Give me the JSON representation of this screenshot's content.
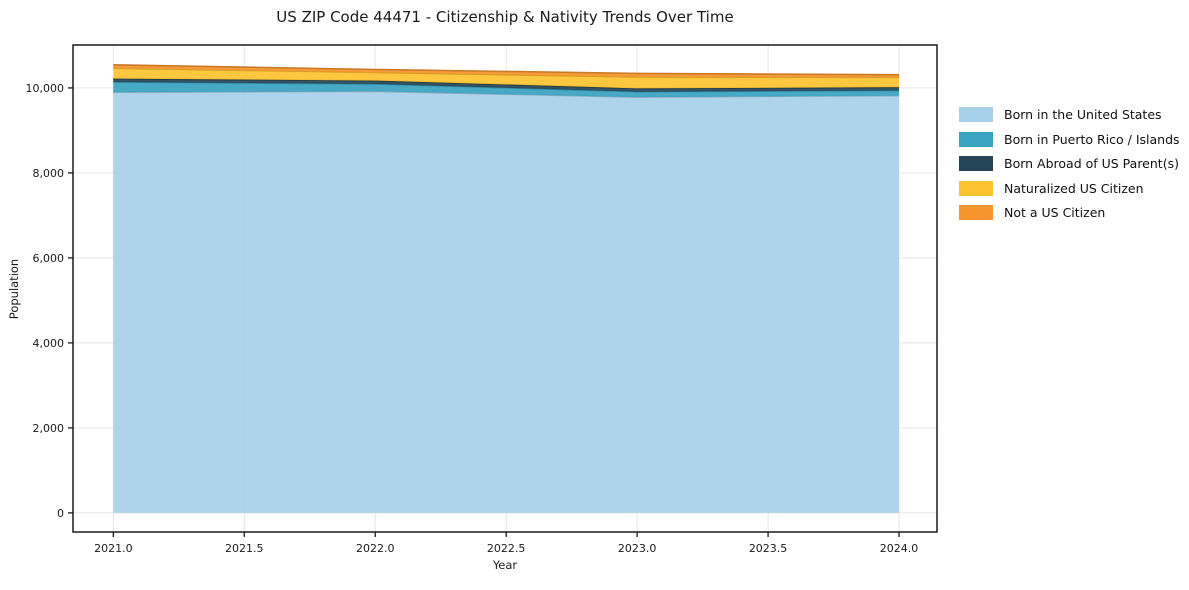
{
  "chart_data": {
    "type": "area",
    "stacked": true,
    "title": "US ZIP Code 44471 - Citizenship & Nativity Trends Over Time",
    "xlabel": "Year",
    "ylabel": "Population",
    "x": [
      2021,
      2022,
      2023,
      2024
    ],
    "series": [
      {
        "name": "Born in the United States",
        "color": "#a7d1e8",
        "values": [
          9900,
          9920,
          9785,
          9820
        ]
      },
      {
        "name": "Born in Puerto Rico / Islands",
        "color": "#3aa3c2",
        "values": [
          240,
          175,
          125,
          120
        ]
      },
      {
        "name": "Born Abroad of US Parent(s)",
        "color": "#254656",
        "values": [
          80,
          78,
          78,
          78
        ]
      },
      {
        "name": "Naturalized US Citizen",
        "color": "#fdc330",
        "values": [
          245,
          190,
          268,
          230
        ]
      },
      {
        "name": "Not a US Citizen",
        "color": "#f6942d",
        "values": [
          80,
          70,
          85,
          62
        ]
      }
    ],
    "xticks": [
      2021.0,
      2021.5,
      2022.0,
      2022.5,
      2023.0,
      2023.5,
      2024.0
    ],
    "xtick_labels": [
      "2021.0",
      "2021.5",
      "2022.0",
      "2022.5",
      "2023.0",
      "2023.5",
      "2024.0"
    ],
    "yticks": [
      0,
      2000,
      4000,
      6000,
      8000,
      10000
    ],
    "ytick_labels": [
      "0",
      "2,000",
      "4,000",
      "6,000",
      "8,000",
      "10,000"
    ],
    "xlim": [
      2020.846,
      2024.145
    ],
    "ylim": [
      -450,
      11010
    ],
    "grid": true,
    "legend_position": "right",
    "colors": {
      "spine": "#1a1a1a",
      "gridline": "#e5e5e5",
      "background": "#ffffff"
    }
  }
}
